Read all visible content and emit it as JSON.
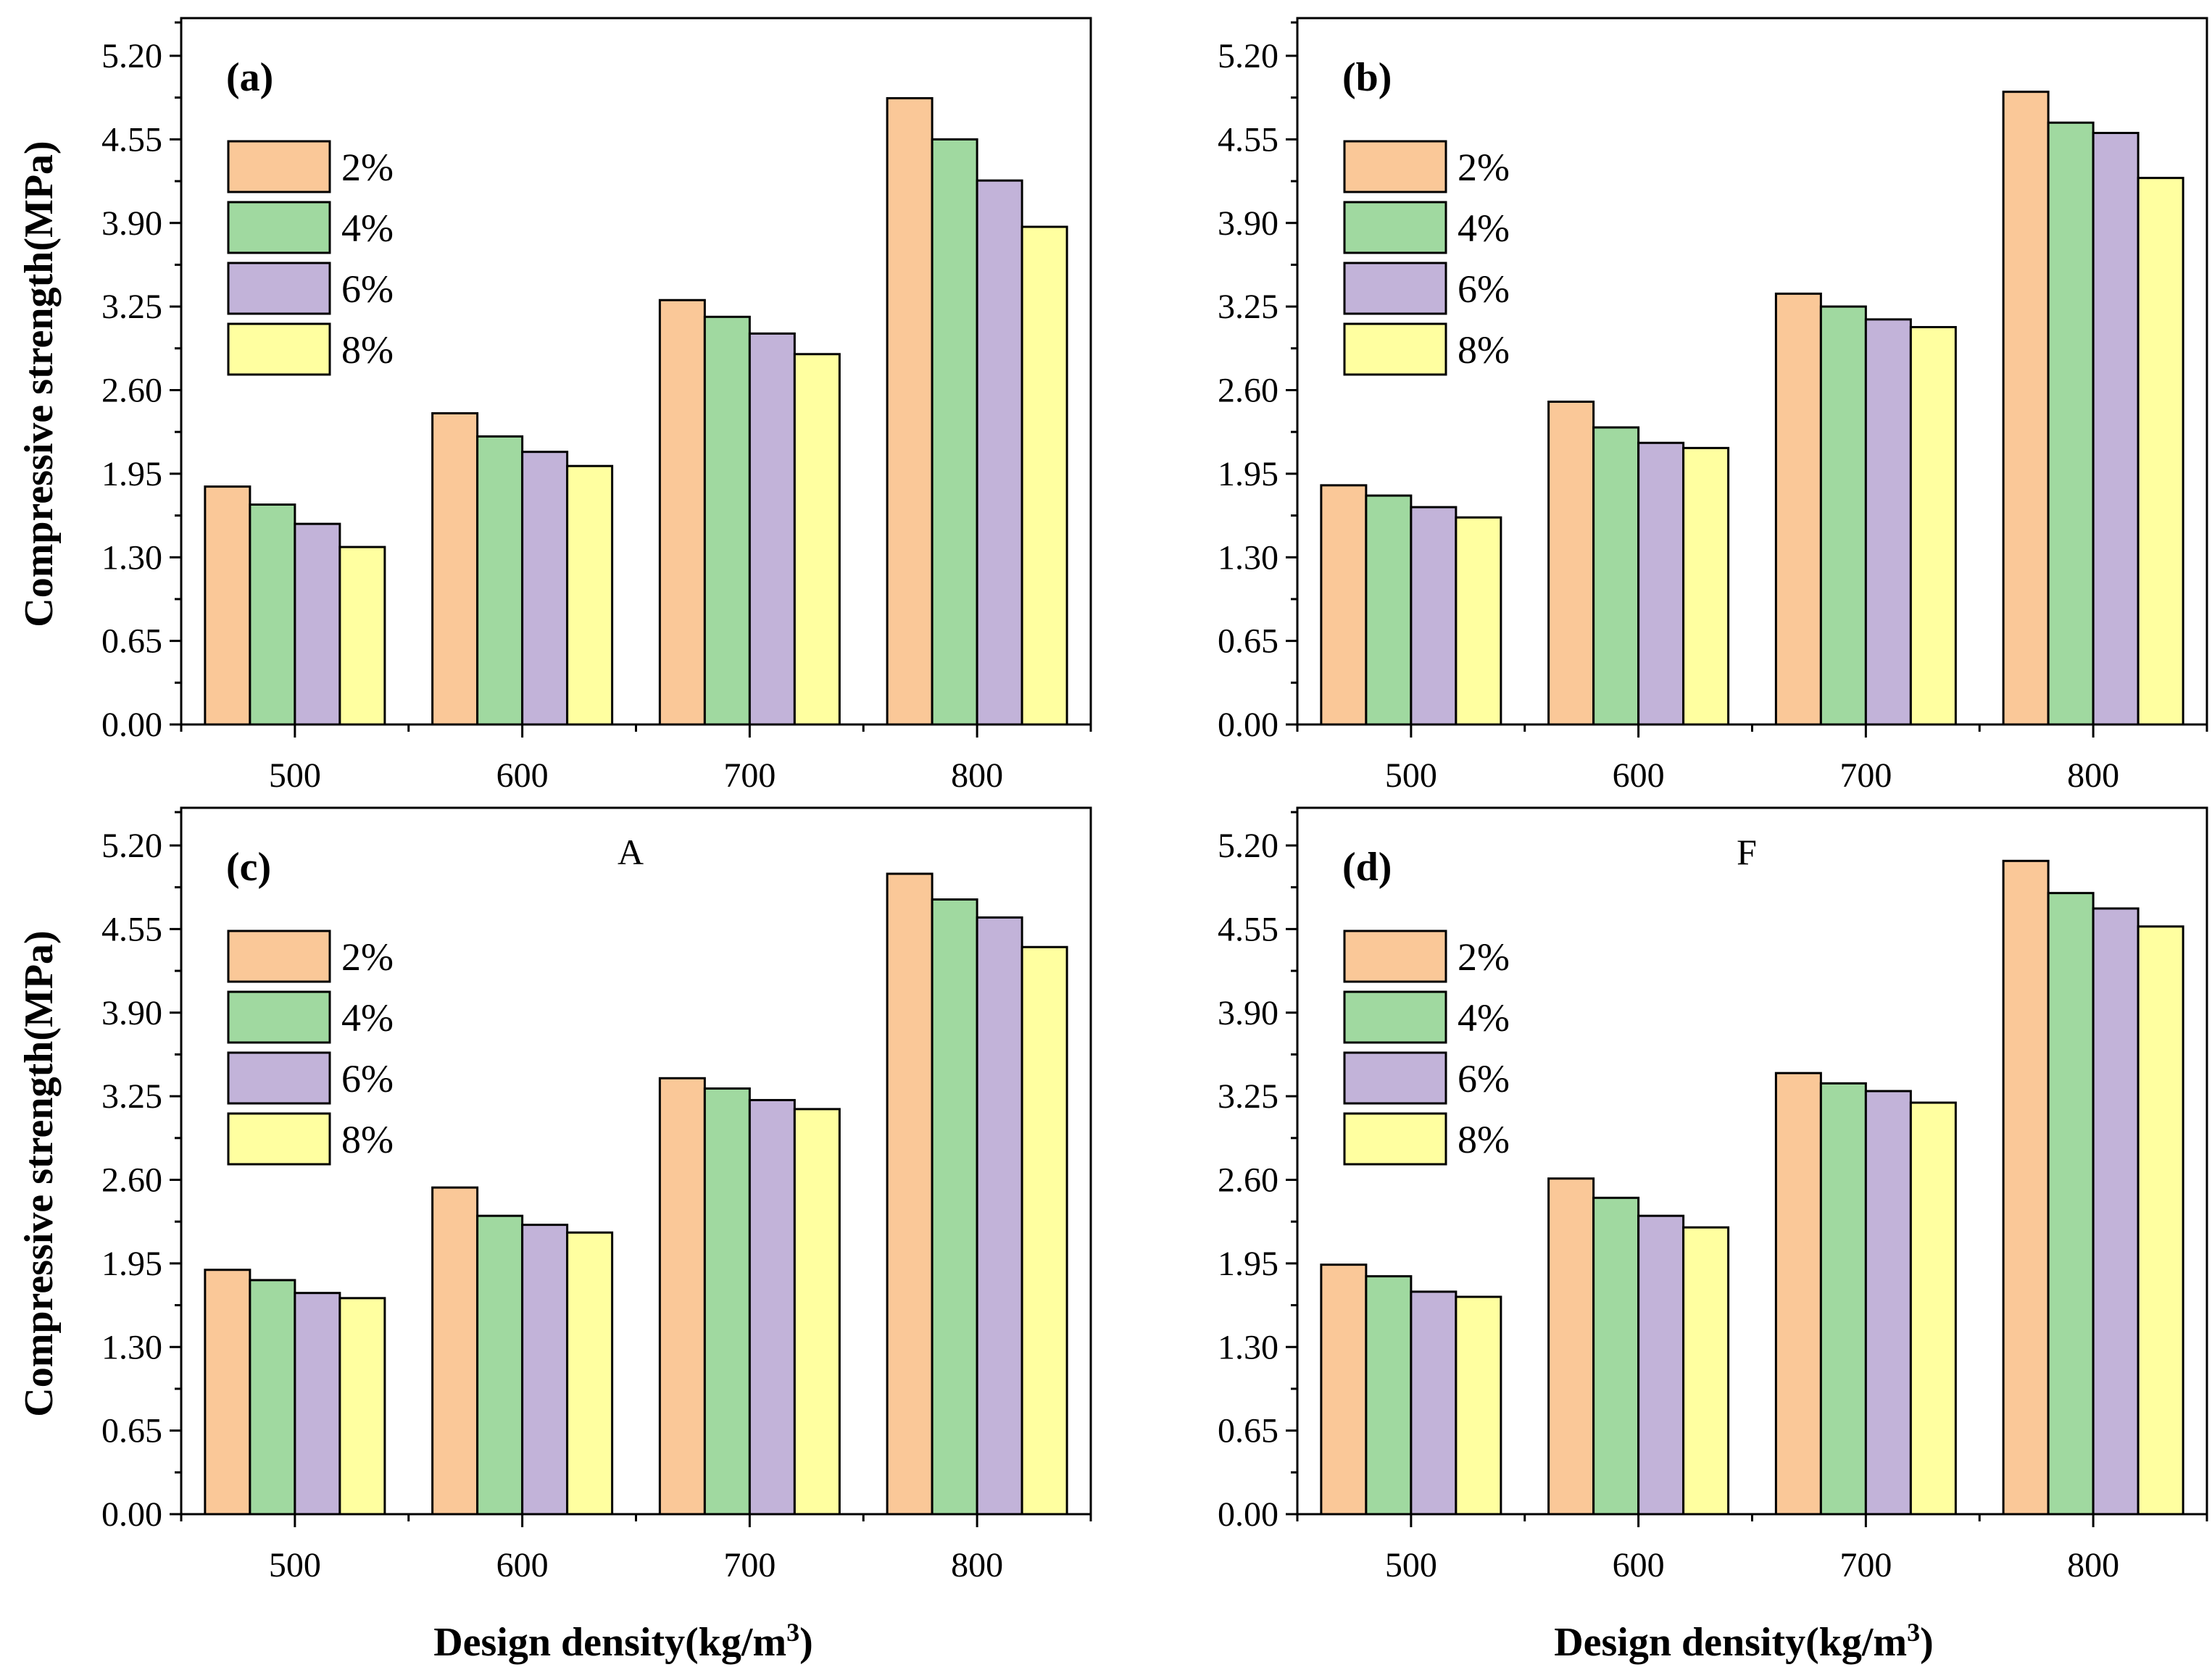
{
  "figure": {
    "x_axis_title_main": "Design density(kg/m",
    "x_axis_title_sup": "3",
    "x_axis_title_close": ")",
    "y_axis_title": "Compressive strength(MPa)"
  },
  "colors": {
    "2%": "#FAC898",
    "4%": "#A0D9A0",
    "6%": "#C2B3D9",
    "8%": "#FFFFA0",
    "frame": "#000000"
  },
  "chart_data": [
    {
      "type": "bar",
      "panel_label": "(a)",
      "annotation": "",
      "categories": [
        "500",
        "600",
        "700",
        "800"
      ],
      "ylim": [
        0,
        5.2
      ],
      "yticks": [
        "0.00",
        "0.65",
        "1.30",
        "1.95",
        "2.60",
        "3.25",
        "3.90",
        "4.55",
        "5.20"
      ],
      "legend": "top-left",
      "series": [
        {
          "name": "2%",
          "values": [
            1.85,
            2.42,
            3.3,
            4.87
          ]
        },
        {
          "name": "4%",
          "values": [
            1.71,
            2.24,
            3.17,
            4.55
          ]
        },
        {
          "name": "6%",
          "values": [
            1.56,
            2.12,
            3.04,
            4.23
          ]
        },
        {
          "name": "8%",
          "values": [
            1.38,
            2.01,
            2.88,
            3.87
          ]
        }
      ]
    },
    {
      "type": "bar",
      "panel_label": "(b)",
      "annotation": "",
      "categories": [
        "500",
        "600",
        "700",
        "800"
      ],
      "ylim": [
        0,
        5.2
      ],
      "yticks": [
        "0.00",
        "0.65",
        "1.30",
        "1.95",
        "2.60",
        "3.25",
        "3.90",
        "4.55",
        "5.20"
      ],
      "legend": "top-left",
      "series": [
        {
          "name": "2%",
          "values": [
            1.86,
            2.51,
            3.35,
            4.92
          ]
        },
        {
          "name": "4%",
          "values": [
            1.78,
            2.31,
            3.25,
            4.68
          ]
        },
        {
          "name": "6%",
          "values": [
            1.69,
            2.19,
            3.15,
            4.6
          ]
        },
        {
          "name": "8%",
          "values": [
            1.61,
            2.15,
            3.09,
            4.25
          ]
        }
      ]
    },
    {
      "type": "bar",
      "panel_label": "(c)",
      "annotation": "A",
      "categories": [
        "500",
        "600",
        "700",
        "800"
      ],
      "ylim": [
        0,
        5.2
      ],
      "yticks": [
        "0.00",
        "0.65",
        "1.30",
        "1.95",
        "2.60",
        "3.25",
        "3.90",
        "4.55",
        "5.20"
      ],
      "legend": "top-left",
      "series": [
        {
          "name": "2%",
          "values": [
            1.9,
            2.54,
            3.39,
            4.98
          ]
        },
        {
          "name": "4%",
          "values": [
            1.82,
            2.32,
            3.31,
            4.78
          ]
        },
        {
          "name": "6%",
          "values": [
            1.72,
            2.25,
            3.22,
            4.64
          ]
        },
        {
          "name": "8%",
          "values": [
            1.68,
            2.19,
            3.15,
            4.41
          ]
        }
      ]
    },
    {
      "type": "bar",
      "panel_label": "(d)",
      "annotation": "F",
      "categories": [
        "500",
        "600",
        "700",
        "800"
      ],
      "ylim": [
        0,
        5.2
      ],
      "yticks": [
        "0.00",
        "0.65",
        "1.30",
        "1.95",
        "2.60",
        "3.25",
        "3.90",
        "4.55",
        "5.20"
      ],
      "legend": "top-left",
      "series": [
        {
          "name": "2%",
          "values": [
            1.94,
            2.61,
            3.43,
            5.08
          ]
        },
        {
          "name": "4%",
          "values": [
            1.85,
            2.46,
            3.35,
            4.83
          ]
        },
        {
          "name": "6%",
          "values": [
            1.73,
            2.32,
            3.29,
            4.71
          ]
        },
        {
          "name": "8%",
          "values": [
            1.69,
            2.23,
            3.2,
            4.57
          ]
        }
      ]
    }
  ]
}
